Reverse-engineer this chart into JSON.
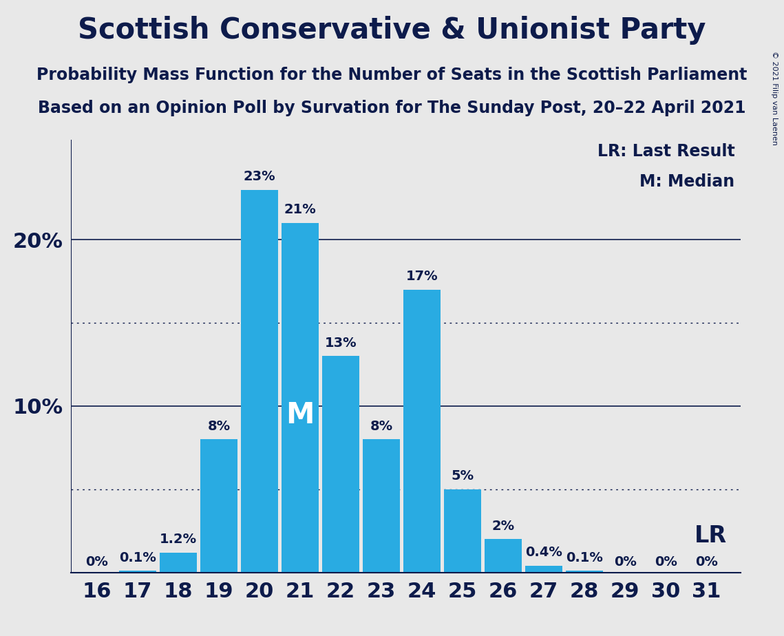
{
  "title": "Scottish Conservative & Unionist Party",
  "subtitle1": "Probability Mass Function for the Number of Seats in the Scottish Parliament",
  "subtitle2": "Based on an Opinion Poll by Survation for The Sunday Post, 20–22 April 2021",
  "copyright": "© 2021 Filip van Laenen",
  "seats": [
    16,
    17,
    18,
    19,
    20,
    21,
    22,
    23,
    24,
    25,
    26,
    27,
    28,
    29,
    30,
    31
  ],
  "probabilities": [
    0.0,
    0.1,
    1.2,
    8.0,
    23.0,
    21.0,
    13.0,
    8.0,
    17.0,
    5.0,
    2.0,
    0.4,
    0.1,
    0.0,
    0.0,
    0.0
  ],
  "bar_labels": [
    "0%",
    "0.1%",
    "1.2%",
    "8%",
    "23%",
    "21%",
    "13%",
    "8%",
    "17%",
    "5%",
    "2%",
    "0.4%",
    "0.1%",
    "0%",
    "0%",
    "0%"
  ],
  "bar_color": "#29ABE2",
  "bg_color": "#E8E8E8",
  "text_color": "#0D1B4B",
  "median_seat": 21,
  "last_result_seat": 31,
  "yticks": [
    10,
    20
  ],
  "dotted_lines": [
    5,
    15
  ],
  "ylim": [
    0,
    26
  ],
  "title_fontsize": 30,
  "subtitle_fontsize": 17,
  "bar_label_fontsize": 14,
  "tick_fontsize": 22,
  "legend_fontsize": 17,
  "median_fontsize": 30,
  "lr_fontsize": 24
}
